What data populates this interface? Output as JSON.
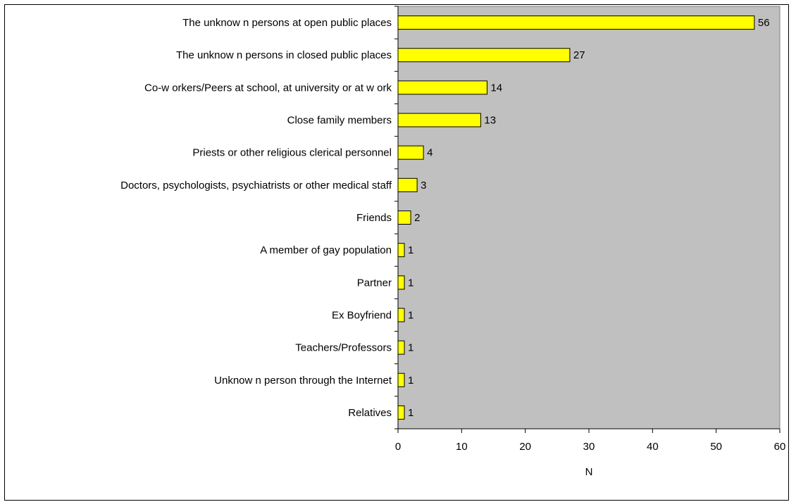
{
  "chart_data": {
    "type": "bar",
    "orientation": "horizontal",
    "categories": [
      "The unknow n persons at open public places",
      "The unknow n persons in closed public places",
      "Co-w orkers/Peers at school, at university or at w ork",
      "Close family members",
      "Priests or other religious clerical personnel",
      "Doctors, psychologists, psychiatrists or other medical staff",
      "Friends",
      "A member of gay population",
      "Partner",
      "Ex Boyfriend",
      "Teachers/Professors",
      "Unknow n person through the Internet",
      "Relatives"
    ],
    "values": [
      56,
      27,
      14,
      13,
      4,
      3,
      2,
      1,
      1,
      1,
      1,
      1,
      1
    ],
    "data_labels": [
      "56",
      "27",
      "14",
      "13",
      "4",
      "3",
      "2",
      "1",
      "1",
      "1",
      "1",
      "1",
      "1"
    ],
    "xlabel": "N",
    "ylabel": "",
    "title": "",
    "xlim": [
      0,
      60
    ],
    "x_ticks": [
      0,
      10,
      20,
      30,
      40,
      50,
      60
    ],
    "x_tick_labels": [
      "0",
      "10",
      "20",
      "30",
      "40",
      "50",
      "60"
    ],
    "grid": false,
    "legend": "none",
    "colors": {
      "bar_fill": "#ffff00",
      "bar_stroke": "#000000",
      "plot_background": "#c0c0c0",
      "page_background": "#ffffff"
    }
  }
}
